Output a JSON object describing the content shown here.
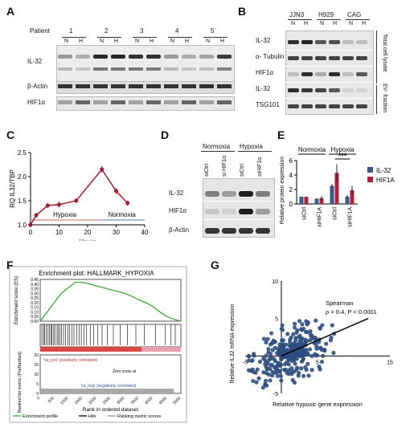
{
  "panels": {
    "A": "A",
    "B": "B",
    "C": "C",
    "D": "D",
    "E": "E",
    "F": "F",
    "G": "G"
  },
  "panelA": {
    "patient_label": "Patient",
    "patients": [
      "1",
      "2",
      "3",
      "4",
      "5"
    ],
    "cond": [
      "N",
      "H"
    ],
    "rows": [
      "IL-32",
      "β-Actin",
      "HIF1α"
    ]
  },
  "panelB": {
    "lines": [
      "JJN3",
      "H929",
      "CAG"
    ],
    "cond": [
      "N",
      "H"
    ],
    "rows": [
      "IL-32",
      "α- Tubulin",
      "HIF1α",
      "IL-32",
      "TSG101"
    ],
    "group_total": "Total cell lysate",
    "group_ev": "EV- fraction"
  },
  "panelD": {
    "groups": [
      "Normoxia",
      "Hypoxia"
    ],
    "lanes": [
      "siCtrl",
      "si HIF1α",
      "siCtrl",
      "siHIF1α"
    ],
    "rows": [
      "IL-32",
      "HIF1α",
      "β-Actin"
    ]
  },
  "chart_data": [
    {
      "type": "line",
      "panel": "C",
      "xlabel": "Hours",
      "ylabel": "RQ IL32/TBP",
      "xlim": [
        0,
        40
      ],
      "ylim": [
        1.0,
        2.5
      ],
      "xticks": [
        0,
        10,
        20,
        30,
        40
      ],
      "yticks": [
        1.0,
        1.5,
        2.0,
        2.5
      ],
      "x": [
        0,
        2,
        6,
        10,
        16,
        25,
        30,
        34
      ],
      "y": [
        1.0,
        1.2,
        1.4,
        1.42,
        1.5,
        2.15,
        1.7,
        1.45
      ],
      "err": [
        0.02,
        0.05,
        0.05,
        0.06,
        0.05,
        0.07,
        0.06,
        0.05
      ],
      "color": "#a01e2d",
      "annotations": [
        "Hypoxia",
        "Normoxia"
      ]
    },
    {
      "type": "bar",
      "panel": "E",
      "ylabel": "Relative protein expression",
      "ylim": [
        0,
        6
      ],
      "yticks": [
        0,
        2,
        4,
        6
      ],
      "categories": [
        "siCtrl",
        "siHIF1A",
        "siCtrl",
        "siHIF1A"
      ],
      "groups": [
        "Normoxia",
        "Hypoxia"
      ],
      "series": [
        {
          "name": "IL-32",
          "color": "#3a5a8c",
          "values": [
            1.0,
            0.7,
            2.5,
            1.0
          ],
          "err": [
            0,
            0.1,
            0.25,
            0.2
          ]
        },
        {
          "name": "HIF1A",
          "color": "#b0203a",
          "values": [
            1.0,
            0.8,
            4.3,
            1.9
          ],
          "err": [
            0,
            0.3,
            1.2,
            0.6
          ]
        }
      ],
      "significance": "***"
    },
    {
      "type": "line",
      "panel": "F",
      "title": "Enrichment plot: HALLMARK_HYPOXIA",
      "ylabel": "Enrichment score (ES)",
      "ylabel2": "Ranked list metric (PreRanked)",
      "xlabel": "Rank in ordered dataset",
      "ylim": [
        0,
        0.45
      ],
      "yticks": [
        0.0,
        0.05,
        0.1,
        0.15,
        0.2,
        0.25,
        0.3,
        0.35,
        0.4,
        0.45
      ],
      "metric_yticks": [
        0,
        5,
        10,
        15,
        20
      ],
      "xticks": [
        0,
        500,
        1000,
        1500,
        2000,
        2500,
        3000,
        3500,
        4000,
        4500,
        5000
      ],
      "x": [
        0,
        250,
        500,
        750,
        1000,
        1250,
        1500,
        1750,
        2000,
        2250,
        2500,
        2750,
        3000,
        3250,
        3500,
        3750,
        4000,
        4250,
        4500,
        4750,
        5000
      ],
      "y": [
        0.0,
        0.1,
        0.2,
        0.3,
        0.36,
        0.42,
        0.42,
        0.4,
        0.38,
        0.36,
        0.34,
        0.32,
        0.3,
        0.27,
        0.23,
        0.2,
        0.16,
        0.1,
        0.05,
        0.02,
        0.0
      ],
      "labels": {
        "pos": "'na_pos' (positively correlated)",
        "neg": "'na_neg' (negatively correlated)",
        "zero": "Zero cross at"
      },
      "legend": [
        "Enrichment profile",
        "Hits",
        "Ranking metric scores"
      ]
    },
    {
      "type": "scatter",
      "panel": "G",
      "xlabel": "Relative hypoxic gene expression",
      "ylabel": "Relative IL32 mRNA expression",
      "xlim": [
        -5,
        15
      ],
      "ylim": [
        -5,
        10
      ],
      "xticks": [
        -5,
        5,
        15
      ],
      "yticks": [
        -5,
        5,
        10
      ],
      "annotation": [
        "Spearman",
        "ρ = 0.4, P < 0.0001"
      ],
      "fit": {
        "x": [
          0,
          12
        ],
        "y": [
          0,
          5
        ]
      },
      "color": "#2f4f80"
    }
  ]
}
